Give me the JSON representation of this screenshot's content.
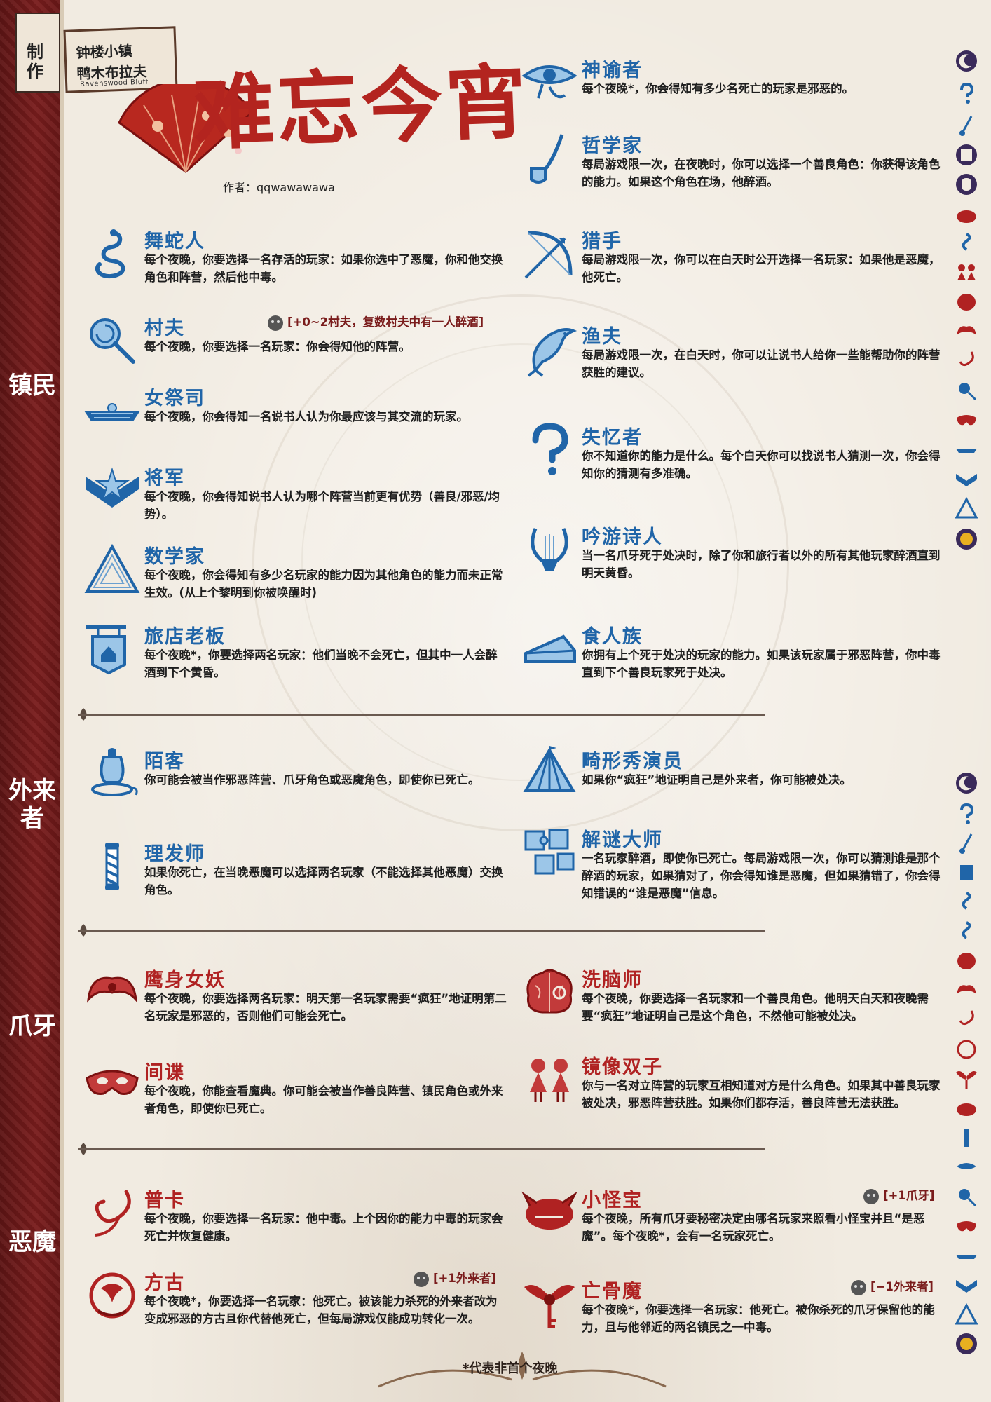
{
  "header": {
    "brand": "制作",
    "town_line1": "钟楼小镇",
    "town_line2": "鸭木布拉夫",
    "town_line3": "Ravenswood Bluff",
    "title": "难忘今宵",
    "author": "作者：qqwawawawa"
  },
  "sections": {
    "townsfolk": "镇民",
    "outsiders": "外来者",
    "minions": "爪牙",
    "demons": "恶魔"
  },
  "townsfolk": [
    {
      "name": "舞蛇人",
      "desc": "每个夜晚，你要选择一名存活的玩家：如果你选中了恶魔，你和他交换角色和阵营，然后他中毒。"
    },
    {
      "name": "村夫",
      "desc": "每个夜晚，你要选择一名玩家：你会得知他的阵营。",
      "jinx": "[+0~2村夫，复数村夫中有一人醉酒]"
    },
    {
      "name": "女祭司",
      "desc": "每个夜晚，你会得知一名说书人认为你最应该与其交流的玩家。"
    },
    {
      "name": "将军",
      "desc": "每个夜晚，你会得知说书人认为哪个阵营当前更有优势（善良/邪恶/均势）。"
    },
    {
      "name": "数学家",
      "desc": "每个夜晚，你会得知有多少名玩家的能力因为其他角色的能力而未正常生效。(从上个黎明到你被唤醒时)"
    },
    {
      "name": "旅店老板",
      "desc": "每个夜晚*，你要选择两名玩家：他们当晚不会死亡，但其中一人会醉酒到下个黄昏。"
    },
    {
      "name": "神谕者",
      "desc": "每个夜晚*，你会得知有多少名死亡的玩家是邪恶的。"
    },
    {
      "name": "哲学家",
      "desc": "每局游戏限一次，在夜晚时，你可以选择一个善良角色：你获得该角色的能力。如果这个角色在场，他醉酒。"
    },
    {
      "name": "猎手",
      "desc": "每局游戏限一次，你可以在白天时公开选择一名玩家：如果他是恶魔，他死亡。"
    },
    {
      "name": "渔夫",
      "desc": "每局游戏限一次，在白天时，你可以让说书人给你一些能帮助你的阵营获胜的建议。"
    },
    {
      "name": "失忆者",
      "desc": "你不知道你的能力是什么。每个白天你可以找说书人猜测一次，你会得知你的猜测有多准确。"
    },
    {
      "name": "吟游诗人",
      "desc": "当一名爪牙死于处决时，除了你和旅行者以外的所有其他玩家醉酒直到明天黄昏。"
    },
    {
      "name": "食人族",
      "desc": "你拥有上个死于处决的玩家的能力。如果该玩家属于邪恶阵营，你中毒直到下个善良玩家死于处决。"
    }
  ],
  "outsiders": [
    {
      "name": "陌客",
      "desc": "你可能会被当作邪恶阵营、爪牙角色或恶魔角色，即使你已死亡。"
    },
    {
      "name": "理发师",
      "desc": "如果你死亡，在当晚恶魔可以选择两名玩家（不能选择其他恶魔）交换角色。"
    },
    {
      "name": "畸形秀演员",
      "desc": "如果你“疯狂”地证明自己是外来者，你可能被处决。"
    },
    {
      "name": "解谜大师",
      "desc": "一名玩家醉酒，即使你已死亡。每局游戏限一次，你可以猜测谁是那个醉酒的玩家，如果猜对了，你会得知谁是恶魔，但如果猜错了，你会得知错误的“谁是恶魔”信息。"
    }
  ],
  "minions": [
    {
      "name": "鹰身女妖",
      "desc": "每个夜晚，你要选择两名玩家：明天第一名玩家需要“疯狂”地证明第二名玩家是邪恶的，否则他们可能会死亡。"
    },
    {
      "name": "间谍",
      "desc": "每个夜晚，你能查看魔典。你可能会被当作善良阵营、镇民角色或外来者角色，即使你已死亡。"
    },
    {
      "name": "洗脑师",
      "desc": "每个夜晚，你要选择一名玩家和一个善良角色。他明天白天和夜晚需要“疯狂”地证明自己是这个角色，不然他可能被处决。"
    },
    {
      "name": "镜像双子",
      "desc": "你与一名对立阵营的玩家互相知道对方是什么角色。如果其中善良玩家被处决，邪恶阵营获胜。如果你们都存活，善良阵营无法获胜。"
    }
  ],
  "demons": [
    {
      "name": "普卡",
      "desc": "每个夜晚，你要选择一名玩家：他中毒。上个因你的能力中毒的玩家会死亡并恢复健康。"
    },
    {
      "name": "方古",
      "desc": "每个夜晚*，你要选择一名玩家：他死亡。被该能力杀死的外来者改为变成邪恶的方古且你代替他死亡，但每局游戏仅能成功转化一次。",
      "jinx": "[+1外来者]"
    },
    {
      "name": "小怪宝",
      "desc": "每个夜晚，所有爪牙要秘密决定由哪名玩家来照看小怪宝并且“是恶魔”。每个夜晚*，会有一名玩家死亡。",
      "jinx": "[+1爪牙]"
    },
    {
      "name": "亡骨魔",
      "desc": "每个夜晚*，你要选择一名玩家：他死亡。被你杀死的爪牙保留他的能力，且与他邻近的两名镇民之一中毒。",
      "jinx": "[−1外来者]"
    }
  ],
  "footer": "*代表非首个夜晚",
  "colors": {
    "good": "#2065a8",
    "evil": "#b02222",
    "band": "#6e1a1a"
  }
}
